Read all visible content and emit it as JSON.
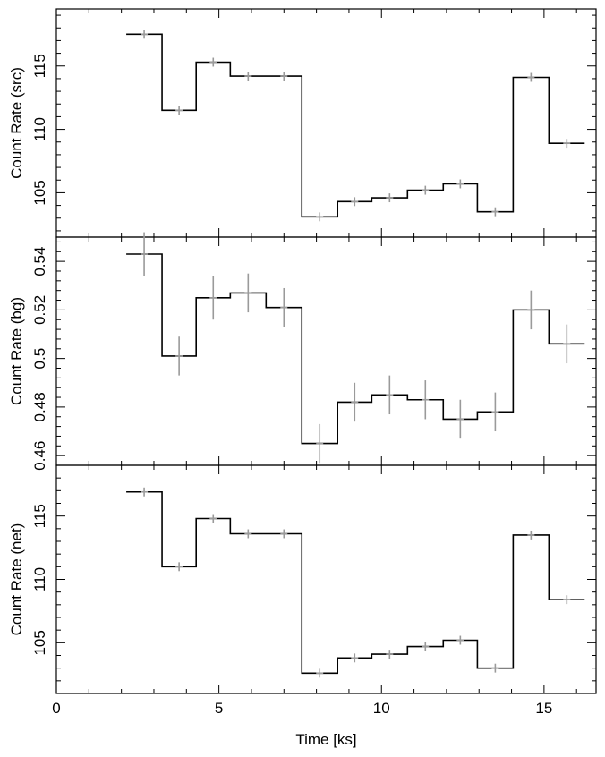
{
  "chart_data": {
    "type": "line",
    "shared_xaxis": {
      "label": "Time [ks]",
      "range": [
        0,
        16.6
      ],
      "ticks": [
        0,
        5,
        10,
        15
      ],
      "tick_labels": [
        "0",
        "5",
        "10",
        "15"
      ]
    },
    "panels": [
      {
        "id": "src",
        "ylabel": "Count Rate (src)",
        "ylim": [
          101.5,
          119.5
        ],
        "yticks": [
          105,
          110,
          115
        ],
        "ytick_labels": [
          "105",
          "110",
          "115"
        ],
        "bin_edges": [
          2.15,
          3.25,
          4.3,
          5.35,
          6.45,
          7.55,
          8.65,
          9.7,
          10.8,
          11.9,
          12.95,
          14.05,
          15.15,
          16.25
        ],
        "values": [
          117.5,
          111.5,
          115.3,
          114.2,
          114.2,
          103.1,
          104.3,
          104.6,
          105.2,
          105.7,
          103.5,
          114.1,
          108.9
        ],
        "errors": [
          0.35,
          0.35,
          0.35,
          0.35,
          0.35,
          0.35,
          0.35,
          0.35,
          0.35,
          0.35,
          0.35,
          0.35,
          0.35
        ]
      },
      {
        "id": "bg",
        "ylabel": "Count Rate (bg)",
        "ylim": [
          0.456,
          0.55
        ],
        "yticks": [
          0.46,
          0.48,
          0.5,
          0.52,
          0.54
        ],
        "ytick_labels": [
          "0.46",
          "0.48",
          "0.5",
          "0.52",
          "0.54"
        ],
        "bin_edges": [
          2.15,
          3.25,
          4.3,
          5.35,
          6.45,
          7.55,
          8.65,
          9.7,
          10.8,
          11.9,
          12.95,
          14.05,
          15.15,
          16.25
        ],
        "values": [
          0.543,
          0.501,
          0.525,
          0.527,
          0.521,
          0.465,
          0.482,
          0.485,
          0.483,
          0.475,
          0.478,
          0.52,
          0.506
        ],
        "errors": [
          0.009,
          0.008,
          0.009,
          0.008,
          0.008,
          0.008,
          0.008,
          0.008,
          0.008,
          0.008,
          0.008,
          0.008,
          0.008
        ]
      },
      {
        "id": "net",
        "ylabel": "Count Rate (net)",
        "ylim": [
          101.0,
          119.0
        ],
        "yticks": [
          105,
          110,
          115
        ],
        "ytick_labels": [
          "105",
          "110",
          "115"
        ],
        "bin_edges": [
          2.15,
          3.25,
          4.3,
          5.35,
          6.45,
          7.55,
          8.65,
          9.7,
          10.8,
          11.9,
          12.95,
          14.05,
          15.15,
          16.25
        ],
        "values": [
          116.9,
          111.0,
          114.8,
          113.6,
          113.6,
          102.6,
          103.8,
          104.1,
          104.7,
          105.2,
          103.0,
          113.5,
          108.4
        ],
        "errors": [
          0.35,
          0.35,
          0.35,
          0.35,
          0.35,
          0.35,
          0.35,
          0.35,
          0.35,
          0.35,
          0.35,
          0.35,
          0.35
        ]
      }
    ],
    "colors": {
      "step": "#000000",
      "errorbar": "#9a9a9a"
    },
    "grid": false,
    "legend": "none"
  }
}
